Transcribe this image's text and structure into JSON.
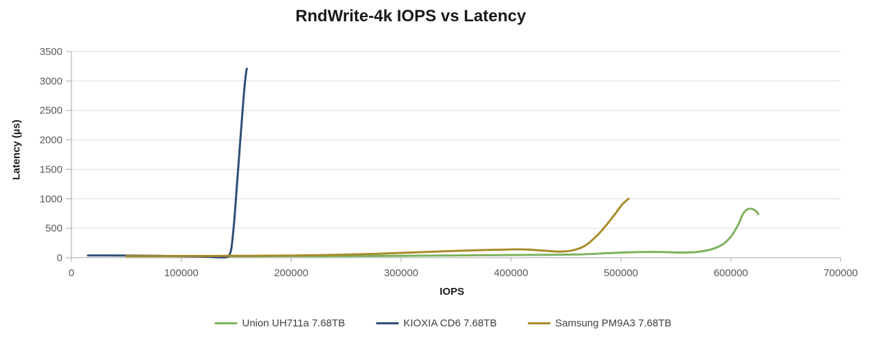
{
  "chart_data": {
    "type": "line",
    "title": "RndWrite-4k IOPS vs Latency",
    "xlabel": "IOPS",
    "ylabel": "Latency (µs)",
    "xlim": [
      0,
      700000
    ],
    "ylim": [
      0,
      3500
    ],
    "x_ticks": [
      0,
      100000,
      200000,
      300000,
      400000,
      500000,
      600000,
      700000
    ],
    "x_tick_labels": [
      "0",
      "100000",
      "200000",
      "300000",
      "400000",
      "500000",
      "600000",
      "700000"
    ],
    "y_ticks": [
      0,
      500,
      1000,
      1500,
      2000,
      2500,
      3000,
      3500
    ],
    "y_tick_labels": [
      "0",
      "500",
      "1000",
      "1500",
      "2000",
      "2500",
      "3000",
      "3500"
    ],
    "grid": "horizontal",
    "legend_position": "bottom-center",
    "series": [
      {
        "name": "Union UH711a 7.68TB",
        "color": "#7CB25C",
        "points": [
          [
            50000,
            25
          ],
          [
            100000,
            25
          ],
          [
            150000,
            25
          ],
          [
            200000,
            26
          ],
          [
            250000,
            28
          ],
          [
            300000,
            32
          ],
          [
            350000,
            38
          ],
          [
            400000,
            45
          ],
          [
            440000,
            50
          ],
          [
            465000,
            57
          ],
          [
            490000,
            78
          ],
          [
            515000,
            95
          ],
          [
            535000,
            97
          ],
          [
            552000,
            88
          ],
          [
            568000,
            95
          ],
          [
            582000,
            140
          ],
          [
            593000,
            230
          ],
          [
            601000,
            380
          ],
          [
            607000,
            570
          ],
          [
            611000,
            740
          ],
          [
            615000,
            820
          ],
          [
            620000,
            823
          ],
          [
            624000,
            770
          ],
          [
            625000,
            735
          ]
        ]
      },
      {
        "name": "KIOXIA CD6 7.68TB",
        "color": "#2E4D76",
        "points": [
          [
            15000,
            38
          ],
          [
            30000,
            38
          ],
          [
            50000,
            36
          ],
          [
            75000,
            32
          ],
          [
            100000,
            26
          ],
          [
            118000,
            20
          ],
          [
            128000,
            10
          ],
          [
            136000,
            5
          ],
          [
            141000,
            8
          ],
          [
            143500,
            40
          ],
          [
            145500,
            150
          ],
          [
            147000,
            400
          ],
          [
            148500,
            700
          ],
          [
            150000,
            1080
          ],
          [
            152000,
            1580
          ],
          [
            154000,
            2080
          ],
          [
            156000,
            2560
          ],
          [
            157500,
            2900
          ],
          [
            159000,
            3150
          ],
          [
            159600,
            3210
          ]
        ]
      },
      {
        "name": "Samsung PM9A3 7.68TB",
        "color": "#A88B28",
        "points": [
          [
            50000,
            28
          ],
          [
            100000,
            29
          ],
          [
            150000,
            31
          ],
          [
            200000,
            36
          ],
          [
            240000,
            48
          ],
          [
            280000,
            68
          ],
          [
            320000,
            95
          ],
          [
            350000,
            115
          ],
          [
            375000,
            130
          ],
          [
            395000,
            138
          ],
          [
            412000,
            140
          ],
          [
            428000,
            122
          ],
          [
            443000,
            103
          ],
          [
            455000,
            120
          ],
          [
            467000,
            200
          ],
          [
            478000,
            370
          ],
          [
            487000,
            560
          ],
          [
            495000,
            750
          ],
          [
            501000,
            900
          ],
          [
            505000,
            970
          ],
          [
            507000,
            1000
          ]
        ]
      }
    ]
  },
  "styles": {
    "background": "#FFFFFF",
    "grid_color": "#D9D9D9",
    "axis_color": "#A6A6A6",
    "tick_label_color": "#595959",
    "title_color": "#1A1A1A",
    "legend_text_color": "#404040"
  }
}
